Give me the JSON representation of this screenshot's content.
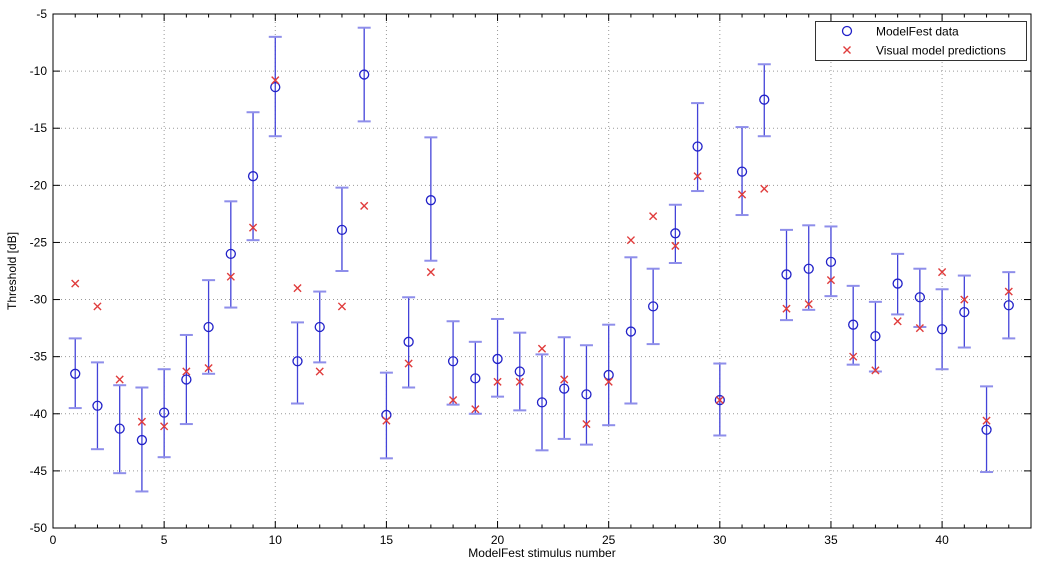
{
  "figure": {
    "xlabel": "ModelFest stimulus number",
    "ylabel": "Threshold [dB]"
  },
  "legend": {
    "position": "top-right",
    "items": [
      {
        "label": "ModelFest data",
        "marker": "circle",
        "color": "#2121c8"
      },
      {
        "label": "Visual model predictions",
        "marker": "x",
        "color": "#e03c3c"
      }
    ]
  },
  "colors": {
    "data_marker": "#2121c8",
    "error_bar": "#4343d9",
    "error_cap": "#8e8eea",
    "model_marker": "#e03c3c",
    "grid": "#999999",
    "axis": "#000000",
    "background": "#ffffff"
  },
  "chart_data": {
    "type": "scatter",
    "title": "",
    "xlabel": "ModelFest stimulus number",
    "ylabel": "Threshold [dB]",
    "xlim": [
      0,
      44
    ],
    "ylim": [
      -50,
      -5
    ],
    "x_ticks_major": [
      0,
      5,
      10,
      15,
      20,
      25,
      30,
      35,
      40
    ],
    "x_ticks_minor_step": 1,
    "y_ticks_major": [
      -50,
      -45,
      -40,
      -35,
      -30,
      -25,
      -20,
      -15,
      -10,
      -5
    ],
    "grid": true,
    "legend_position": "top-right",
    "x": [
      1,
      2,
      3,
      4,
      5,
      6,
      7,
      8,
      9,
      10,
      11,
      12,
      13,
      14,
      15,
      16,
      17,
      18,
      19,
      20,
      21,
      22,
      23,
      24,
      25,
      26,
      27,
      28,
      29,
      30,
      31,
      32,
      33,
      34,
      35,
      36,
      37,
      38,
      39,
      40,
      41,
      42,
      43
    ],
    "series": [
      {
        "name": "ModelFest data",
        "marker": "circle",
        "color": "#2121c8",
        "values": [
          -36.5,
          -39.3,
          -41.3,
          -42.3,
          -39.9,
          -37.0,
          -32.4,
          -26.0,
          -19.2,
          -11.4,
          -35.4,
          -32.4,
          -23.9,
          -10.3,
          -40.1,
          -33.7,
          -21.3,
          -35.4,
          -36.9,
          -35.2,
          -36.3,
          -39.0,
          -37.8,
          -38.3,
          -36.6,
          -32.8,
          -30.6,
          -24.2,
          -16.6,
          -38.8,
          -18.8,
          -12.5,
          -27.8,
          -27.3,
          -26.7,
          -32.2,
          -33.2,
          -28.6,
          -29.8,
          -32.6,
          -31.1,
          -41.4,
          -30.5
        ],
        "error_upper": [
          -33.4,
          -35.5,
          -37.5,
          -37.7,
          -36.1,
          -33.1,
          -28.3,
          -21.4,
          -13.6,
          -7.0,
          -32.0,
          -29.3,
          -20.2,
          -6.2,
          -36.4,
          -29.8,
          -15.8,
          -31.9,
          -33.7,
          -31.7,
          -32.9,
          -34.8,
          -33.3,
          -34.0,
          -32.2,
          -26.3,
          -27.3,
          -21.7,
          -12.8,
          -35.6,
          -14.9,
          -9.4,
          -23.9,
          -23.5,
          -23.6,
          -28.8,
          -30.2,
          -26.0,
          -27.3,
          -29.1,
          -27.9,
          -37.6,
          -27.6
        ],
        "error_lower": [
          -39.5,
          -43.1,
          -45.2,
          -46.8,
          -43.8,
          -40.9,
          -36.5,
          -30.7,
          -24.8,
          -15.7,
          -39.1,
          -35.5,
          -27.5,
          -14.4,
          -43.9,
          -37.7,
          -26.6,
          -39.2,
          -40.0,
          -38.5,
          -39.7,
          -43.2,
          -42.2,
          -42.7,
          -41.0,
          -39.1,
          -33.9,
          -26.8,
          -20.5,
          -41.9,
          -22.6,
          -15.7,
          -31.8,
          -30.9,
          -29.7,
          -35.7,
          -36.3,
          -31.3,
          -32.4,
          -36.1,
          -34.2,
          -45.1,
          -33.4
        ]
      },
      {
        "name": "Visual model predictions",
        "marker": "x",
        "color": "#e03c3c",
        "values": [
          -28.6,
          -30.6,
          -37.0,
          -40.7,
          -41.1,
          -36.3,
          -36.0,
          -28.0,
          -23.7,
          -10.8,
          -29.0,
          -36.3,
          -30.6,
          -21.8,
          -40.6,
          -35.6,
          -27.6,
          -38.8,
          -39.6,
          -37.2,
          -37.2,
          -34.3,
          -37.0,
          -40.9,
          -37.2,
          -24.8,
          -22.7,
          -25.3,
          -19.2,
          -38.8,
          -20.8,
          -20.3,
          -30.8,
          -30.4,
          -28.3,
          -35.0,
          -36.2,
          -31.9,
          -32.5,
          -27.6,
          -30.0,
          -40.6,
          -29.3
        ]
      }
    ]
  }
}
